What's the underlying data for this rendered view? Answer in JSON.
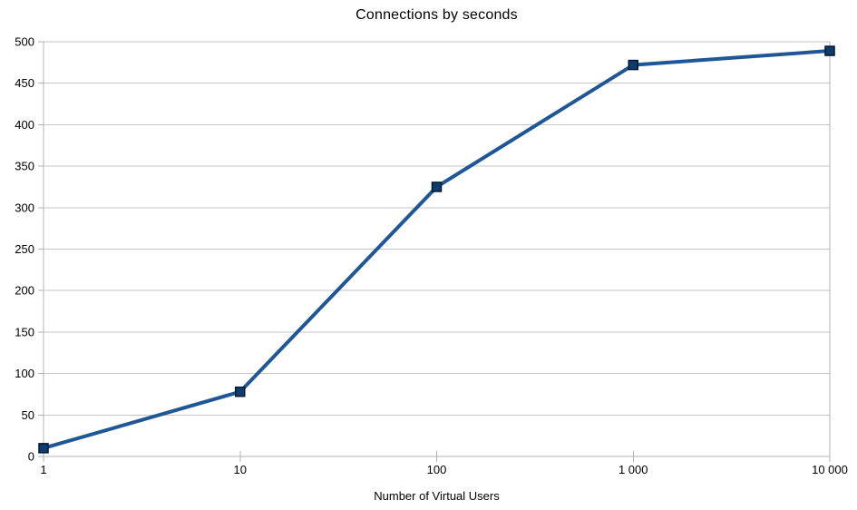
{
  "page": {
    "background": "#ffffff"
  },
  "chart_data": {
    "type": "line",
    "title": "Connections by seconds",
    "xlabel": "Number of Virtual Users",
    "ylabel": "",
    "x_scale": "log10",
    "x": [
      1,
      10,
      100,
      1000,
      10000
    ],
    "x_tick_labels": [
      "1",
      "10",
      "100",
      "1 000",
      "10 000"
    ],
    "values": [
      10,
      78,
      325,
      472,
      489
    ],
    "series_name": "Connections",
    "ylim": [
      0,
      500
    ],
    "ytick_step": 50,
    "y_tick_labels": [
      "0",
      "50",
      "100",
      "150",
      "200",
      "250",
      "300",
      "350",
      "400",
      "450",
      "500"
    ],
    "grid": "horizontal",
    "legend": "none",
    "marker": "square",
    "colors": {
      "line": "#1f5796",
      "marker_fill": "#0d3c6d",
      "marker_border": "#03172e",
      "grid": "#c6c6c6",
      "axis": "#b3b3b3",
      "text": "#000000",
      "background": "#ffffff"
    }
  }
}
